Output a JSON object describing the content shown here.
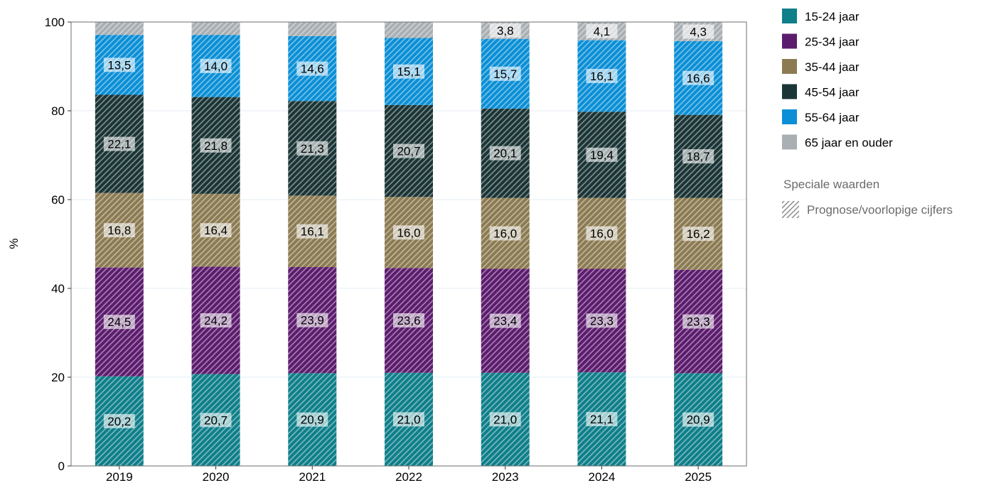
{
  "chart_data": {
    "type": "bar",
    "stacked": true,
    "title": "",
    "xlabel": "",
    "ylabel": "%",
    "ylim": [
      0,
      100
    ],
    "yticks": [
      0,
      20,
      40,
      60,
      80,
      100
    ],
    "grid": true,
    "legend_position": "right",
    "categories": [
      "2019",
      "2020",
      "2021",
      "2022",
      "2023",
      "2024",
      "2025"
    ],
    "series": [
      {
        "name": "15-24 jaar",
        "color": "#0f7f8a",
        "values": [
          20.2,
          20.7,
          20.9,
          21.0,
          21.0,
          21.1,
          20.9
        ],
        "labels": [
          "20,2",
          "20,7",
          "20,9",
          "21,0",
          "21,0",
          "21,1",
          "20,9"
        ]
      },
      {
        "name": "25-34 jaar",
        "color": "#5c1c6e",
        "values": [
          24.5,
          24.2,
          23.9,
          23.6,
          23.4,
          23.3,
          23.3
        ],
        "labels": [
          "24,5",
          "24,2",
          "23,9",
          "23,6",
          "23,4",
          "23,3",
          "23,3"
        ]
      },
      {
        "name": "35-44 jaar",
        "color": "#8c7b52",
        "values": [
          16.8,
          16.4,
          16.1,
          16.0,
          16.0,
          16.0,
          16.2
        ],
        "labels": [
          "16,8",
          "16,4",
          "16,1",
          "16,0",
          "16,0",
          "16,0",
          "16,2"
        ]
      },
      {
        "name": "45-54 jaar",
        "color": "#1b3536",
        "values": [
          22.1,
          21.8,
          21.3,
          20.7,
          20.1,
          19.4,
          18.7
        ],
        "labels": [
          "22,1",
          "21,8",
          "21,3",
          "20,7",
          "20,1",
          "19,4",
          "18,7"
        ]
      },
      {
        "name": "55-64 jaar",
        "color": "#0b8fd6",
        "values": [
          13.5,
          14.0,
          14.6,
          15.1,
          15.7,
          16.1,
          16.6
        ],
        "labels": [
          "13,5",
          "14,0",
          "14,6",
          "15,1",
          "15,7",
          "16,1",
          "16,6"
        ]
      },
      {
        "name": "65 jaar en ouder",
        "color": "#a9afb3",
        "values": [
          2.9,
          2.9,
          3.2,
          3.6,
          3.8,
          4.1,
          4.3
        ],
        "labels": [
          "",
          "",
          "",
          "",
          "3,8",
          "4,1",
          "4,3"
        ]
      }
    ],
    "special_values": {
      "heading": "Speciale waarden",
      "items": [
        {
          "name": "Prognose/voorlopige cijfers",
          "pattern": "diagonal-hatch"
        }
      ]
    }
  }
}
